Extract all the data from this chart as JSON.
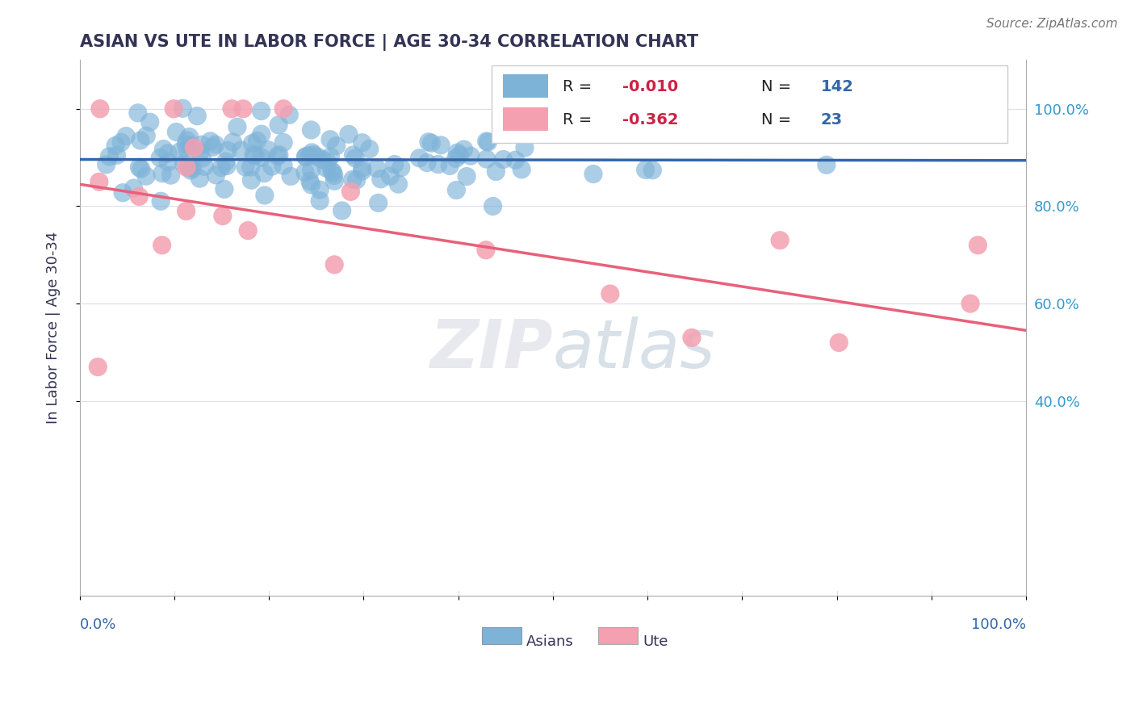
{
  "title": "ASIAN VS UTE IN LABOR FORCE | AGE 30-34 CORRELATION CHART",
  "source_text": "Source: ZipAtlas.com",
  "ylabel": "In Labor Force | Age 30-34",
  "xlim": [
    0.0,
    1.0
  ],
  "ylim": [
    0.0,
    1.1
  ],
  "ytick_positions": [
    0.4,
    0.6,
    0.8,
    1.0
  ],
  "ytick_labels": [
    "40.0%",
    "60.0%",
    "80.0%",
    "100.0%"
  ],
  "asian_R": -0.01,
  "asian_N": 142,
  "ute_R": -0.362,
  "ute_N": 23,
  "blue_color": "#7EB3D8",
  "pink_color": "#F4A0B0",
  "blue_line_color": "#3366AA",
  "pink_line_color": "#E8607A",
  "dashed_line_color": "#AAAACC",
  "dashed_line_y": 0.895,
  "title_color": "#333355",
  "legend_R_color": "#CC2244",
  "legend_N_color": "#3366AA",
  "background_color": "#FFFFFF",
  "asian_line_start": 0.896,
  "asian_line_end": 0.894,
  "ute_line_start": 0.845,
  "ute_line_end": 0.545
}
